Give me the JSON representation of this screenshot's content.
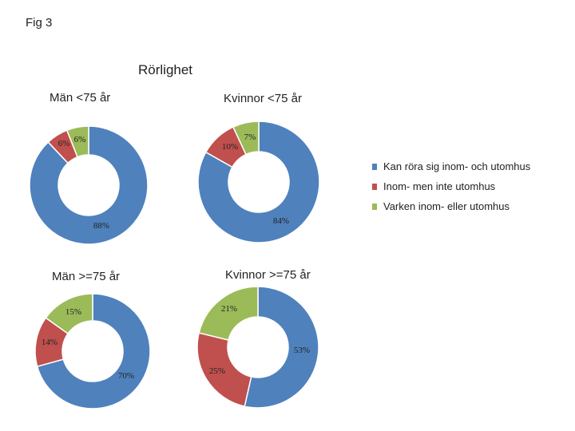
{
  "figure_label": "Fig 3",
  "chart_data": {
    "type": "donut",
    "title": "Rörlighet",
    "legend": {
      "position": "right",
      "entries": [
        "Kan röra sig inom- och utomhus",
        "Inom- men inte utomhus",
        "Varken inom- eller utomhus"
      ]
    },
    "colors": [
      "#4f81bd",
      "#c0504d",
      "#9bbb59"
    ],
    "charts": [
      {
        "title": "Män <75 år",
        "values": [
          88,
          6,
          6
        ],
        "labels": [
          "88%",
          "6%",
          "6%"
        ]
      },
      {
        "title": "Kvinnor <75 år",
        "values": [
          84,
          10,
          7
        ],
        "labels": [
          "84%",
          "10%",
          "7%"
        ]
      },
      {
        "title": "Män >=75 år",
        "values": [
          70,
          14,
          15
        ],
        "labels": [
          "70%",
          "14%",
          "15%"
        ]
      },
      {
        "title": "Kvinnor >=75 år",
        "values": [
          53,
          25,
          21
        ],
        "labels": [
          "53%",
          "25%",
          "21%"
        ]
      }
    ]
  }
}
